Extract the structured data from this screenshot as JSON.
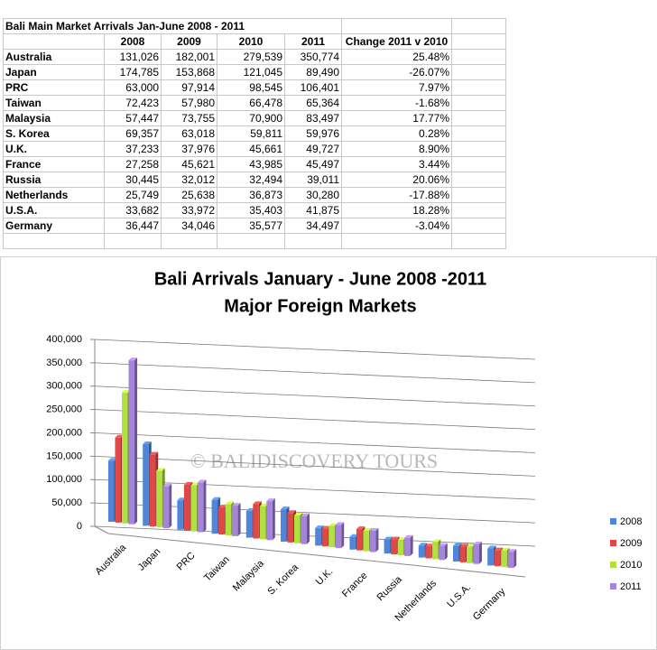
{
  "table": {
    "title": "Bali Main Market Arrivals Jan-June 2008 - 2011",
    "header": [
      "2008",
      "2009",
      "2010",
      "2011",
      "Change 2011 v 2010"
    ],
    "rows": [
      [
        "Australia",
        "131,026",
        "182,001",
        "279,539",
        "350,774",
        "25.48%"
      ],
      [
        "Japan",
        "174,785",
        "153,868",
        "121,045",
        "89,490",
        "-26.07%"
      ],
      [
        "PRC",
        "63,000",
        "97,914",
        "98,545",
        "106,401",
        "7.97%"
      ],
      [
        "Taiwan",
        "72,423",
        "57,980",
        "66,478",
        "65,364",
        "-1.68%"
      ],
      [
        "Malaysia",
        "57,447",
        "73,755",
        "70,900",
        "83,497",
        "17.77%"
      ],
      [
        "S. Korea",
        "69,357",
        "63,018",
        "59,811",
        "59,976",
        "0.28%"
      ],
      [
        "U.K.",
        "37,233",
        "37,976",
        "45,661",
        "49,727",
        "8.90%"
      ],
      [
        "France",
        "27,258",
        "45,621",
        "43,985",
        "45,497",
        "3.44%"
      ],
      [
        "Russia",
        "30,445",
        "32,012",
        "32,494",
        "39,011",
        "20.06%"
      ],
      [
        "Netherlands",
        "25,749",
        "25,638",
        "36,873",
        "30,280",
        "-17.88%"
      ],
      [
        "U.S.A.",
        "33,682",
        "33,972",
        "35,403",
        "41,875",
        "18.28%"
      ],
      [
        "Germany",
        "36,447",
        "34,046",
        "35,577",
        "34,497",
        "-3.04%"
      ]
    ]
  },
  "chart_data": {
    "type": "bar",
    "title": "Bali Arrivals January - June 2008 -2011",
    "subtitle": "Major Foreign Markets",
    "watermark": "© BALIDISCOVERY TOURS",
    "categories": [
      "Australia",
      "Japan",
      "PRC",
      "Taiwan",
      "Malaysia",
      "S. Korea",
      "U.K.",
      "France",
      "Russia",
      "Netherlands",
      "U.S.A.",
      "Germany"
    ],
    "series": [
      {
        "name": "2008",
        "color": "#4f86d9",
        "values": [
          131026,
          174785,
          63000,
          72423,
          57447,
          69357,
          37233,
          27258,
          30445,
          25749,
          33682,
          36447
        ]
      },
      {
        "name": "2009",
        "color": "#e04848",
        "values": [
          182001,
          153868,
          97914,
          57980,
          73755,
          63018,
          37976,
          45621,
          32012,
          25638,
          33972,
          34046
        ]
      },
      {
        "name": "2010",
        "color": "#b2e040",
        "values": [
          279539,
          121045,
          98545,
          66478,
          70900,
          59811,
          45661,
          43985,
          32494,
          36873,
          35403,
          35577
        ]
      },
      {
        "name": "2011",
        "color": "#a584dc",
        "values": [
          350774,
          89490,
          106401,
          65364,
          83497,
          59976,
          49727,
          45497,
          39011,
          30280,
          41875,
          34497
        ]
      }
    ],
    "ylim": [
      0,
      400000
    ],
    "yticks": [
      0,
      {
        "value": 50000,
        "label": "50,000"
      },
      {
        "value": 100000,
        "label": "100,000"
      },
      {
        "value": 150000,
        "label": "150,000"
      },
      {
        "value": 200000,
        "label": "200,000"
      },
      {
        "value": 250000,
        "label": "250,000"
      },
      {
        "value": 300000,
        "label": "300,000"
      },
      {
        "value": 350000,
        "label": "350,000"
      },
      {
        "value": 400000,
        "label": "400,000"
      }
    ],
    "grid": true,
    "legend": "right"
  }
}
